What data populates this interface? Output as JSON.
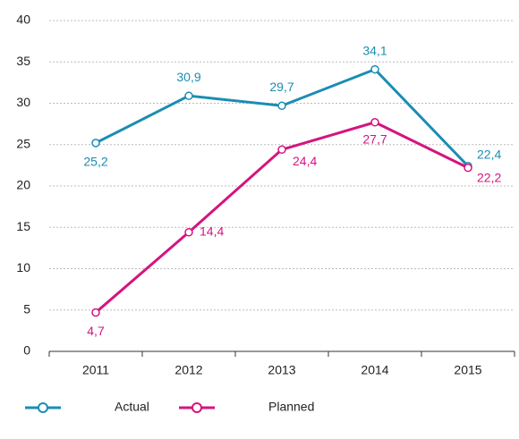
{
  "chart_data": {
    "type": "line",
    "categories": [
      "2011",
      "2012",
      "2013",
      "2014",
      "2015"
    ],
    "series": [
      {
        "name": "Actual",
        "color": "#1b8db3",
        "values": [
          25.2,
          30.9,
          29.7,
          34.1,
          22.4
        ],
        "value_labels": [
          "25,2",
          "30,9",
          "29,7",
          "34,1",
          "22,4"
        ]
      },
      {
        "name": "Planned",
        "color": "#d4147f",
        "values": [
          4.7,
          14.4,
          24.4,
          27.7,
          22.2
        ],
        "value_labels": [
          "4,7",
          "14,4",
          "24,4",
          "27,7",
          "22,2"
        ]
      }
    ],
    "ylim": [
      0,
      40
    ],
    "yticks": [
      0,
      5,
      10,
      15,
      20,
      25,
      30,
      35,
      40
    ],
    "grid": true
  }
}
